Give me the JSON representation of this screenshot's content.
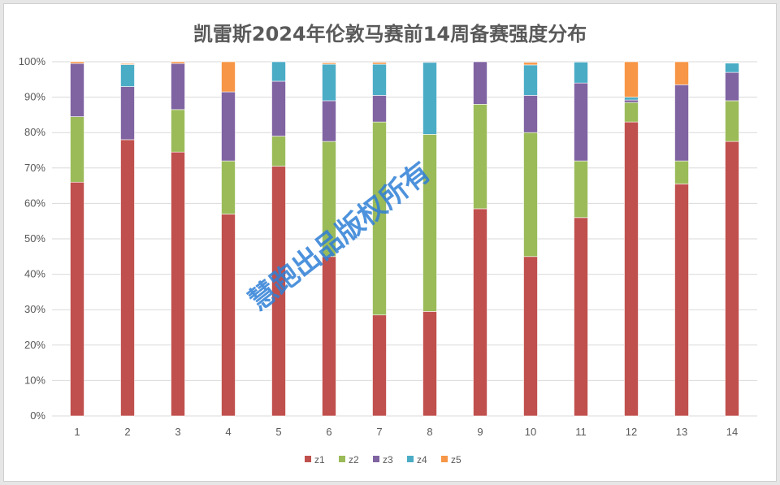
{
  "chart_data": {
    "type": "bar",
    "stacked": true,
    "percent": true,
    "title": "凯雷斯2024年伦敦马赛前14周备赛强度分布",
    "categories": [
      "1",
      "2",
      "3",
      "4",
      "5",
      "6",
      "7",
      "8",
      "9",
      "10",
      "11",
      "12",
      "13",
      "14"
    ],
    "ylim": [
      0,
      100
    ],
    "yticks": [
      "0%",
      "10%",
      "20%",
      "30%",
      "40%",
      "50%",
      "60%",
      "70%",
      "80%",
      "90%",
      "100%"
    ],
    "grid": true,
    "legend_position": "bottom",
    "series": [
      {
        "name": "z1",
        "color": "#c0504d",
        "values": [
          66,
          78,
          74.5,
          57,
          70.5,
          45,
          28.5,
          29.5,
          58.5,
          45,
          56,
          83,
          65.5,
          77.5
        ]
      },
      {
        "name": "z2",
        "color": "#9bbb59",
        "values": [
          18.5,
          0,
          12,
          15,
          8.5,
          32.5,
          54.5,
          50,
          29.5,
          35,
          16,
          5.5,
          6.5,
          11.5
        ]
      },
      {
        "name": "z3",
        "color": "#8064a2",
        "values": [
          15,
          15,
          13,
          19.5,
          15.5,
          11.5,
          7.5,
          0,
          12,
          10.5,
          22,
          0.7,
          21.5,
          8
        ]
      },
      {
        "name": "z4",
        "color": "#4bacc6",
        "values": [
          0,
          6.2,
          0,
          0,
          5.5,
          10.3,
          8.8,
          20.3,
          0,
          8.6,
          5.9,
          0.8,
          0,
          2.6
        ]
      },
      {
        "name": "z5",
        "color": "#f79646",
        "values": [
          0.5,
          0.3,
          0.5,
          8.5,
          0,
          0.4,
          0.5,
          0,
          0,
          0.7,
          0,
          10,
          6.5,
          0
        ]
      }
    ]
  },
  "watermark": "慧跑出品版权所有"
}
